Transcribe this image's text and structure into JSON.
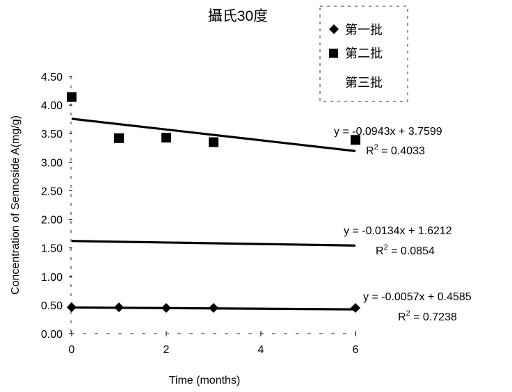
{
  "chart_data": {
    "type": "scatter",
    "title": "攝氏30度",
    "xlabel": "Time (months)",
    "ylabel": "Concentration of Sennoside A(mg/g)",
    "xlim": [
      0,
      6
    ],
    "ylim": [
      0,
      4.5
    ],
    "x_ticks": [
      "0",
      "2",
      "4",
      "6"
    ],
    "y_ticks": [
      "0.00",
      "0.50",
      "1.00",
      "1.50",
      "2.00",
      "2.50",
      "3.00",
      "3.50",
      "4.00",
      "4.50"
    ],
    "grid": false,
    "legend_position": "top-right",
    "series": [
      {
        "name": "第一批",
        "marker": "diamond",
        "x": [
          0,
          1,
          2,
          3,
          6
        ],
        "y": [
          0.46,
          0.46,
          0.45,
          0.45,
          0.45
        ],
        "trendline": {
          "slope": -0.0057,
          "intercept": 0.4585
        },
        "equation": "y = -0.0057x + 0.4585",
        "r2_prefix": "R",
        "r2_value": " = 0.7238"
      },
      {
        "name": "第二批",
        "marker": "square",
        "x": [
          0,
          1,
          2,
          3,
          6
        ],
        "y": [
          4.14,
          3.42,
          3.43,
          3.35,
          3.39
        ],
        "trendline": {
          "slope": -0.0943,
          "intercept": 3.7599
        },
        "equation": "y = -0.0943x + 3.7599",
        "r2_prefix": "R",
        "r2_value": " = 0.4033"
      },
      {
        "name": "第三批",
        "marker": "none",
        "x": [],
        "y": [],
        "trendline": {
          "slope": -0.0134,
          "intercept": 1.6212
        },
        "equation": "y = -0.0134x + 1.6212",
        "r2_prefix": "R",
        "r2_value": " = 0.0854"
      }
    ],
    "colors": {
      "marker": "#000000",
      "trendline": "#000000"
    }
  }
}
